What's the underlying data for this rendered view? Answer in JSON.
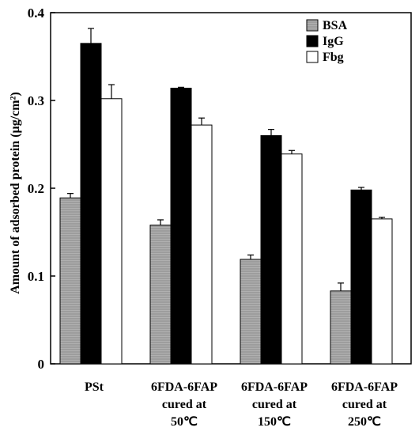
{
  "chart_data": {
    "type": "bar",
    "ylabel": "Amount of adsorbed protein (µg/cm²)",
    "ylim": [
      0,
      0.4
    ],
    "yticks": [
      "0",
      "0.1",
      "0.2",
      "0.3",
      "0.4"
    ],
    "categories": [
      [
        "PSt"
      ],
      [
        "6FDA-6FAP",
        "cured at",
        "50℃"
      ],
      [
        "6FDA-6FAP",
        "cured at",
        "150℃"
      ],
      [
        "6FDA-6FAP",
        "cured at",
        "250℃"
      ]
    ],
    "series": [
      {
        "name": "BSA",
        "color": "#a8a8a8",
        "values": [
          0.189,
          0.158,
          0.119,
          0.083
        ],
        "errors": [
          0.005,
          0.006,
          0.005,
          0.009
        ]
      },
      {
        "name": "IgG",
        "color": "#000000",
        "values": [
          0.365,
          0.314,
          0.26,
          0.198
        ],
        "errors": [
          0.017,
          0.001,
          0.007,
          0.003
        ]
      },
      {
        "name": "Fbg",
        "color": "#ffffff",
        "values": [
          0.302,
          0.272,
          0.239,
          0.165
        ],
        "errors": [
          0.016,
          0.008,
          0.004,
          0.002
        ]
      }
    ],
    "legend_position": "top-right",
    "grid": false
  }
}
